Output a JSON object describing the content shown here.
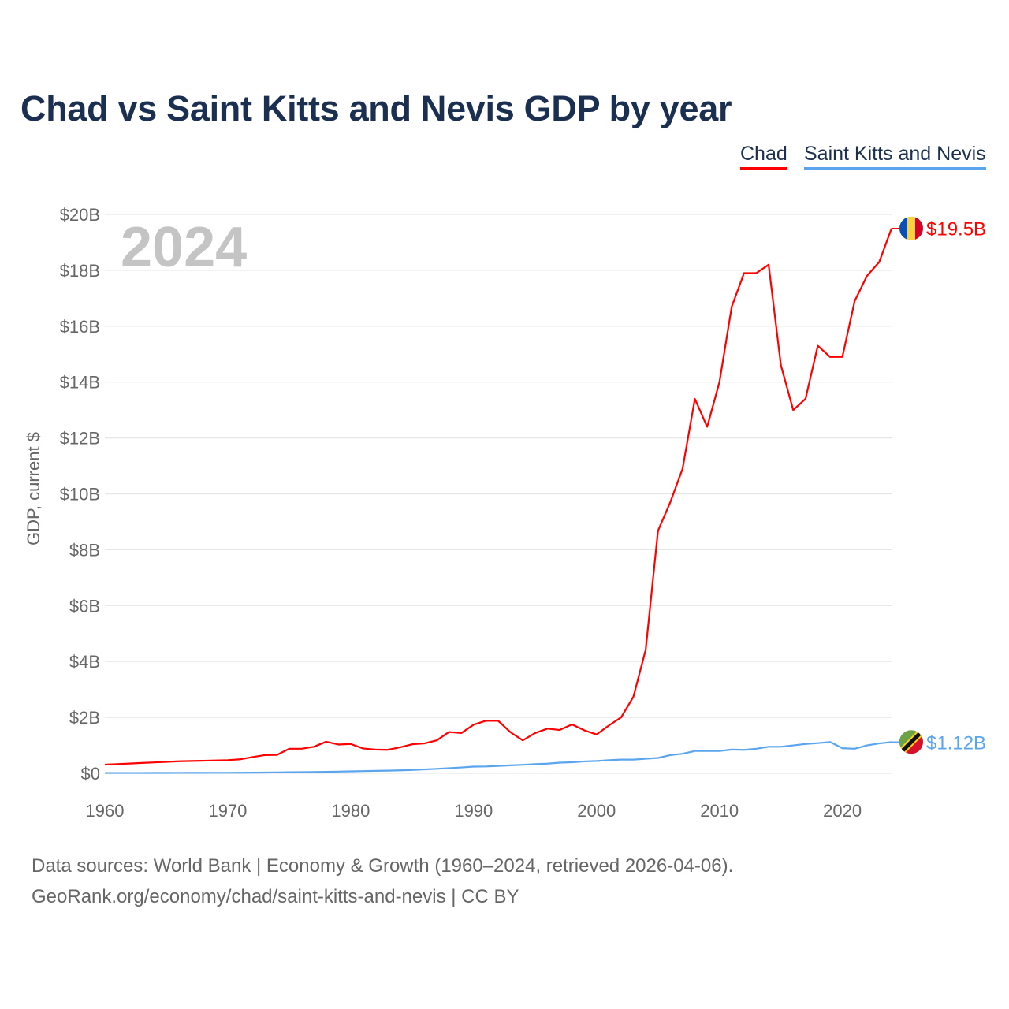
{
  "chart_data": {
    "type": "line",
    "title": "Chad vs Saint Kitts and Nevis GDP by year",
    "ylabel": "GDP, current $",
    "xlabel": "",
    "xlim": [
      1960,
      2024
    ],
    "ylim": [
      0,
      20
    ],
    "y_unit": "billion USD",
    "x_ticks": [
      1960,
      1970,
      1980,
      1990,
      2000,
      2010,
      2020
    ],
    "x_tick_labels": [
      "1960",
      "1970",
      "1980",
      "1990",
      "2000",
      "2010",
      "2020"
    ],
    "y_ticks": [
      0,
      2,
      4,
      6,
      8,
      10,
      12,
      14,
      16,
      18,
      20
    ],
    "y_tick_labels": [
      "$0",
      "$2B",
      "$4B",
      "$6B",
      "$8B",
      "$10B",
      "$12B",
      "$14B",
      "$16B",
      "$18B",
      "$20B"
    ],
    "grid": true,
    "legend_position": "top-right",
    "year_watermark": "2024",
    "x": [
      1960,
      1961,
      1962,
      1963,
      1964,
      1965,
      1966,
      1967,
      1968,
      1969,
      1970,
      1971,
      1972,
      1973,
      1974,
      1975,
      1976,
      1977,
      1978,
      1979,
      1980,
      1981,
      1982,
      1983,
      1984,
      1985,
      1986,
      1987,
      1988,
      1989,
      1990,
      1991,
      1992,
      1993,
      1994,
      1995,
      1996,
      1997,
      1998,
      1999,
      2000,
      2001,
      2002,
      2003,
      2004,
      2005,
      2006,
      2007,
      2008,
      2009,
      2010,
      2011,
      2012,
      2013,
      2014,
      2015,
      2016,
      2017,
      2018,
      2019,
      2020,
      2021,
      2022,
      2023,
      2024
    ],
    "series": [
      {
        "name": "Chad",
        "color": "#ff0000",
        "end_label": "$19.5B",
        "values": [
          0.31,
          0.33,
          0.35,
          0.37,
          0.39,
          0.41,
          0.43,
          0.44,
          0.45,
          0.46,
          0.47,
          0.5,
          0.58,
          0.65,
          0.66,
          0.88,
          0.88,
          0.95,
          1.13,
          1.03,
          1.05,
          0.89,
          0.85,
          0.84,
          0.93,
          1.04,
          1.07,
          1.18,
          1.48,
          1.44,
          1.74,
          1.88,
          1.88,
          1.47,
          1.18,
          1.44,
          1.6,
          1.55,
          1.75,
          1.54,
          1.39,
          1.71,
          2.0,
          2.74,
          4.42,
          8.68,
          9.7,
          10.9,
          13.4,
          12.4,
          14.0,
          16.7,
          17.9,
          17.9,
          18.2,
          14.6,
          13.0,
          13.4,
          15.3,
          14.9,
          14.9,
          16.9,
          17.8,
          18.3,
          19.5
        ]
      },
      {
        "name": "Saint Kitts and Nevis",
        "color": "#5aa5ee",
        "end_label": "$1.12B",
        "values": [
          0.012,
          0.012,
          0.013,
          0.013,
          0.014,
          0.015,
          0.016,
          0.017,
          0.018,
          0.019,
          0.02,
          0.022,
          0.025,
          0.028,
          0.033,
          0.04,
          0.042,
          0.048,
          0.055,
          0.062,
          0.07,
          0.08,
          0.088,
          0.095,
          0.105,
          0.12,
          0.14,
          0.16,
          0.185,
          0.21,
          0.24,
          0.245,
          0.265,
          0.285,
          0.305,
          0.33,
          0.345,
          0.38,
          0.395,
          0.425,
          0.44,
          0.47,
          0.49,
          0.49,
          0.52,
          0.55,
          0.65,
          0.7,
          0.8,
          0.8,
          0.8,
          0.85,
          0.84,
          0.88,
          0.95,
          0.95,
          1.0,
          1.05,
          1.08,
          1.12,
          0.9,
          0.88,
          1.0,
          1.07,
          1.12
        ]
      }
    ]
  },
  "footer": {
    "line1": "Data sources: World Bank | Economy & Growth (1960–2024, retrieved 2026-04-06).",
    "line2": "GeoRank.org/economy/chad/saint-kitts-and-nevis | CC BY"
  }
}
